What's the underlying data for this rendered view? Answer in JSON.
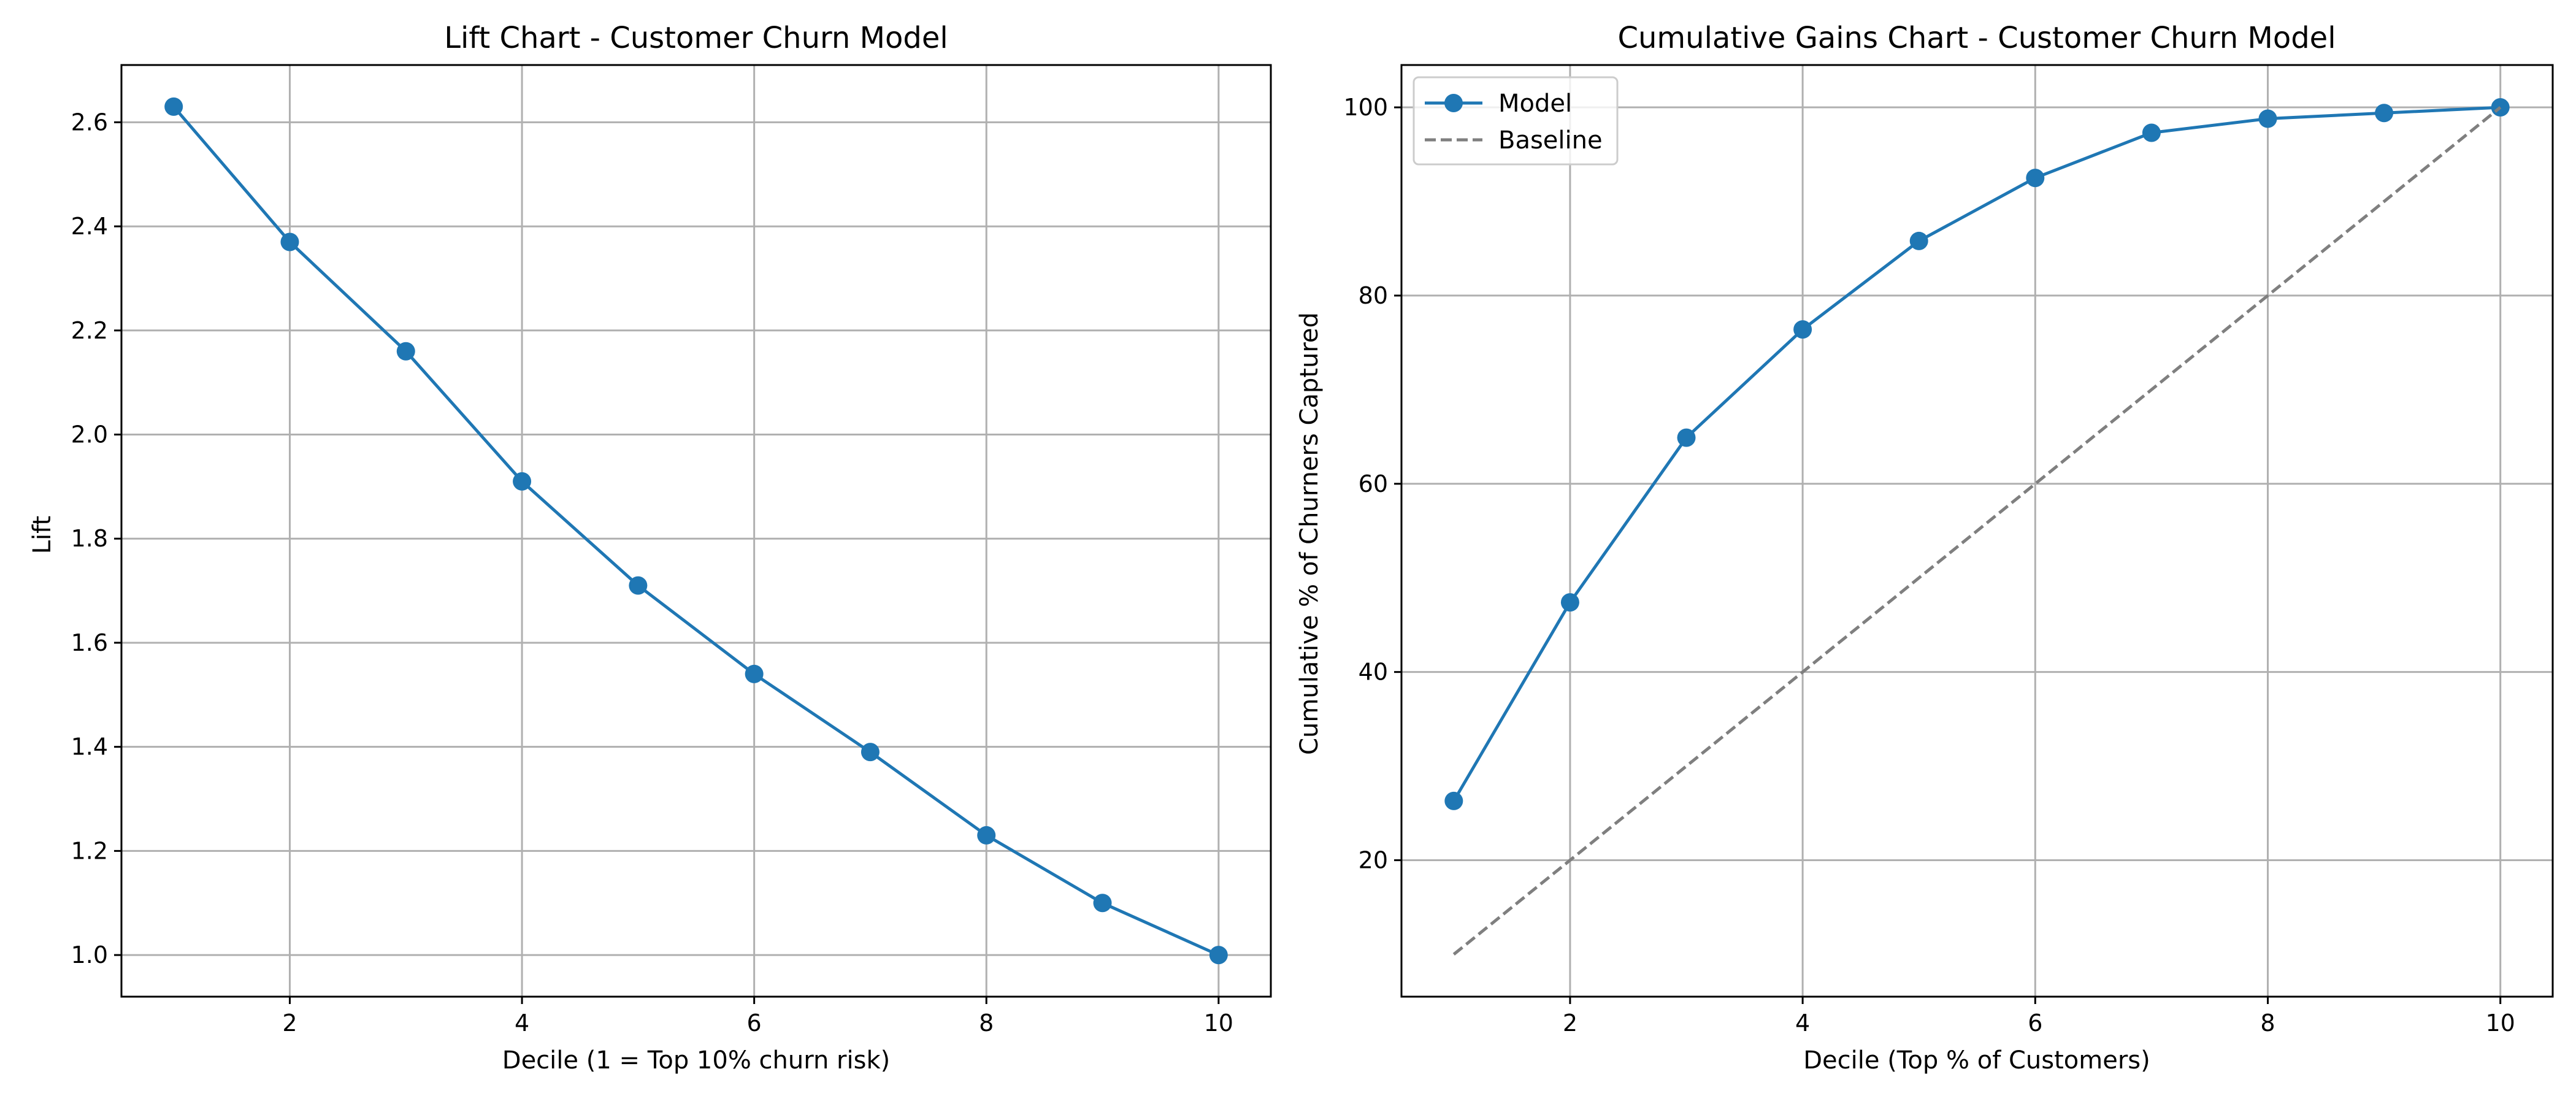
{
  "chart_data": [
    {
      "type": "line",
      "title": "Lift Chart - Customer Churn Model",
      "xlabel": "Decile (1 = Top 10% churn risk)",
      "ylabel": "Lift",
      "xlim": [
        0.55,
        10.45
      ],
      "ylim": [
        0.92,
        2.71
      ],
      "xticks": [
        2,
        4,
        6,
        8,
        10
      ],
      "yticks": [
        1.0,
        1.2,
        1.4,
        1.6,
        1.8,
        2.0,
        2.2,
        2.4,
        2.6
      ],
      "ytick_format": "1dp",
      "grid": true,
      "legend": null,
      "x": [
        1,
        2,
        3,
        4,
        5,
        6,
        7,
        8,
        9,
        10
      ],
      "series": [
        {
          "values": [
            2.63,
            2.37,
            2.16,
            1.91,
            1.71,
            1.54,
            1.39,
            1.23,
            1.1,
            1.0
          ],
          "color": "#1f77b4",
          "marker": "circle",
          "dash": "solid"
        }
      ]
    },
    {
      "type": "line",
      "title": "Cumulative Gains Chart - Customer Churn Model",
      "xlabel": "Decile (Top % of Customers)",
      "ylabel": "Cumulative % of Churners Captured",
      "xlim": [
        0.55,
        10.45
      ],
      "ylim": [
        5.5,
        104.5
      ],
      "xticks": [
        2,
        4,
        6,
        8,
        10
      ],
      "yticks": [
        20,
        40,
        60,
        80,
        100
      ],
      "ytick_format": "int",
      "grid": true,
      "legend": "top-left",
      "x": [
        1,
        2,
        3,
        4,
        5,
        6,
        7,
        8,
        9,
        10
      ],
      "series": [
        {
          "name": "Model",
          "values": [
            26.3,
            47.4,
            64.9,
            76.4,
            85.8,
            92.5,
            97.3,
            98.8,
            99.4,
            100.0
          ],
          "color": "#1f77b4",
          "marker": "circle",
          "dash": "solid"
        },
        {
          "name": "Baseline",
          "values": [
            10,
            20,
            30,
            40,
            50,
            60,
            70,
            80,
            90,
            100
          ],
          "color": "#7f7f7f",
          "marker": "none",
          "dash": "dashed"
        }
      ]
    }
  ]
}
